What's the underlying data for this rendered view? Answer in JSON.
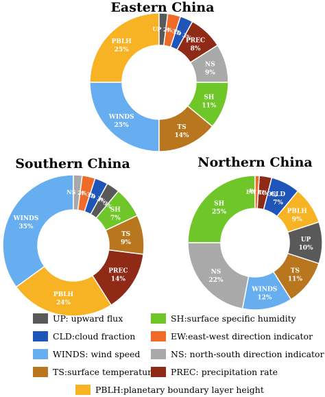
{
  "chart_data": [
    {
      "type": "pie",
      "title": "Eastern China",
      "slices": [
        {
          "key": "PBLH",
          "label": "PBLH",
          "value": 25,
          "pct": "25%"
        },
        {
          "key": "WINDS",
          "label": "WINDS",
          "value": 25,
          "pct": "25%"
        },
        {
          "key": "TS",
          "label": "TS",
          "value": 14,
          "pct": "14%"
        },
        {
          "key": "SH",
          "label": "SH",
          "value": 11,
          "pct": "11%"
        },
        {
          "key": "NS",
          "label": "NS",
          "value": 9,
          "pct": "9%"
        },
        {
          "key": "PREC",
          "label": "PREC",
          "value": 8,
          "pct": "8%"
        },
        {
          "key": "CLD",
          "label": "CLD",
          "value": 3,
          "pct": "3%"
        },
        {
          "key": "EW",
          "label": "EW",
          "value": 3,
          "pct": "3%"
        },
        {
          "key": "UP",
          "label": "UP",
          "value": 2,
          "pct": "2%"
        }
      ]
    },
    {
      "type": "pie",
      "title": "Southern China",
      "slices": [
        {
          "key": "WINDS",
          "label": "WINDS",
          "value": 35,
          "pct": "35%"
        },
        {
          "key": "PBLH",
          "label": "PBLH",
          "value": 24,
          "pct": "24%"
        },
        {
          "key": "PREC",
          "label": "PREC",
          "value": 14,
          "pct": "14%"
        },
        {
          "key": "TS",
          "label": "TS",
          "value": 9,
          "pct": "9%"
        },
        {
          "key": "SH",
          "label": "SH",
          "value": 7,
          "pct": "7%"
        },
        {
          "key": "UP",
          "label": "UP",
          "value": 3,
          "pct": "3%"
        },
        {
          "key": "CLD",
          "label": "CLD",
          "value": 3,
          "pct": "3%"
        },
        {
          "key": "EW",
          "label": "EW",
          "value": 3,
          "pct": "3%"
        },
        {
          "key": "NS",
          "label": "NS",
          "value": 2,
          "pct": "2%"
        }
      ]
    },
    {
      "type": "pie",
      "title": "Northern China",
      "slices": [
        {
          "key": "SH",
          "label": "SH",
          "value": 25,
          "pct": "25%"
        },
        {
          "key": "NS",
          "label": "NS",
          "value": 22,
          "pct": "22%"
        },
        {
          "key": "WINDS",
          "label": "WINDS",
          "value": 12,
          "pct": "12%"
        },
        {
          "key": "TS",
          "label": "TS",
          "value": 11,
          "pct": "11%"
        },
        {
          "key": "UP",
          "label": "UP",
          "value": 10,
          "pct": "10%"
        },
        {
          "key": "PBLH",
          "label": "PBLH",
          "value": 9,
          "pct": "9%"
        },
        {
          "key": "CLD",
          "label": "CLD",
          "value": 7,
          "pct": "7%"
        },
        {
          "key": "PREC",
          "label": "PREC",
          "value": 3,
          "pct": "3%"
        },
        {
          "key": "EW",
          "label": "EW",
          "value": 1,
          "pct": "1%"
        }
      ]
    }
  ],
  "colors": {
    "UP": "#595959",
    "CLD": "#1f55b8",
    "WINDS": "#66aef0",
    "TS": "#b8761e",
    "PBLH": "#f8b324",
    "SH": "#6fc629",
    "EW": "#f06a28",
    "NS": "#a9a9a9",
    "PREC": "#8f2a16"
  },
  "legend": [
    {
      "key": "UP",
      "text": "UP: upward flux"
    },
    {
      "key": "SH",
      "text": "SH:surface specific humidity"
    },
    {
      "key": "CLD",
      "text": "CLD:cloud fraction"
    },
    {
      "key": "EW",
      "text": "EW:east-west direction indicator"
    },
    {
      "key": "WINDS",
      "text": "WINDS: wind speed"
    },
    {
      "key": "NS",
      "text": "NS: north-south direction indicator"
    },
    {
      "key": "TS",
      "text": "TS:surface temperature"
    },
    {
      "key": "PREC",
      "text": "PREC: precipitation rate"
    },
    {
      "key": "PBLH",
      "text": "PBLH:planetary boundary layer height"
    }
  ]
}
